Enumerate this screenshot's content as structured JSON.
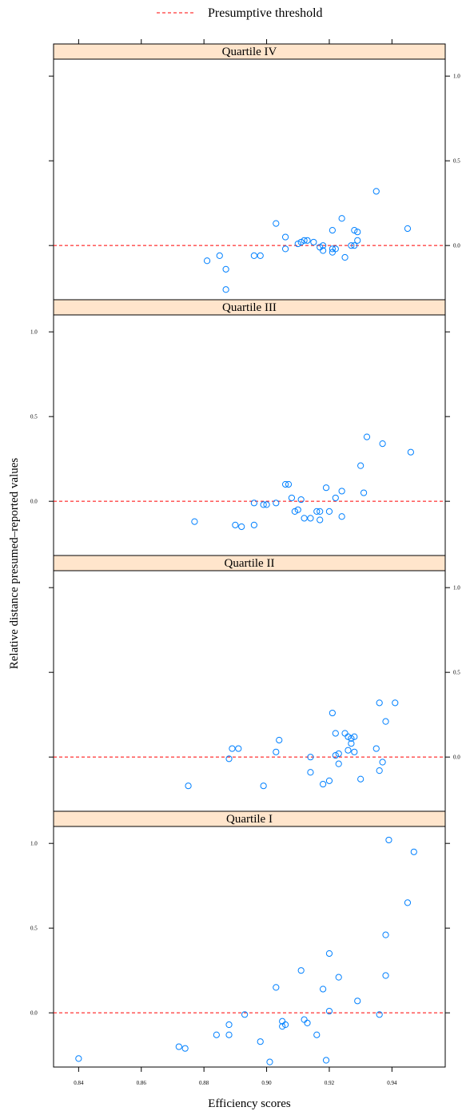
{
  "chart_data": {
    "type": "scatter",
    "layout": "lattice-stacked-panels",
    "xlabel": "Efficiency scores",
    "ylabel": "Relative distance presumed–reported values",
    "xlim": [
      0.832,
      0.957
    ],
    "ylim": [
      -0.32,
      1.1
    ],
    "x_ticks": [
      0.84,
      0.86,
      0.88,
      0.9,
      0.92,
      0.94
    ],
    "x_tick_labels": [
      "0.84",
      "0.86",
      "0.88",
      "0.90",
      "0.92",
      "0.94"
    ],
    "y_ticks": [
      0.0,
      0.5,
      1.0
    ],
    "y_tick_labels": [
      "0.0",
      "0.5",
      "1.0"
    ],
    "grid": false,
    "legend": {
      "position": "top",
      "entries": [
        {
          "label": "Presumptive threshold",
          "style": "dashed",
          "color": "#ff0000"
        }
      ]
    },
    "threshold_y": 0.0,
    "point_color": "#0080ff",
    "strip_color": "#ffe5cc",
    "panels": [
      {
        "label": "Quartile IV",
        "points": [
          {
            "x": 0.881,
            "y": -0.09
          },
          {
            "x": 0.885,
            "y": -0.06
          },
          {
            "x": 0.887,
            "y": -0.14
          },
          {
            "x": 0.887,
            "y": -0.26
          },
          {
            "x": 0.896,
            "y": -0.06
          },
          {
            "x": 0.898,
            "y": -0.06
          },
          {
            "x": 0.903,
            "y": 0.13
          },
          {
            "x": 0.906,
            "y": 0.05
          },
          {
            "x": 0.906,
            "y": -0.02
          },
          {
            "x": 0.91,
            "y": 0.01
          },
          {
            "x": 0.911,
            "y": 0.02
          },
          {
            "x": 0.912,
            "y": 0.03
          },
          {
            "x": 0.913,
            "y": 0.03
          },
          {
            "x": 0.915,
            "y": 0.02
          },
          {
            "x": 0.917,
            "y": -0.01
          },
          {
            "x": 0.918,
            "y": 0.0
          },
          {
            "x": 0.918,
            "y": -0.03
          },
          {
            "x": 0.921,
            "y": -0.02
          },
          {
            "x": 0.921,
            "y": -0.04
          },
          {
            "x": 0.921,
            "y": 0.09
          },
          {
            "x": 0.922,
            "y": -0.02
          },
          {
            "x": 0.924,
            "y": 0.16
          },
          {
            "x": 0.925,
            "y": -0.07
          },
          {
            "x": 0.927,
            "y": 0.0
          },
          {
            "x": 0.928,
            "y": 0.0
          },
          {
            "x": 0.928,
            "y": 0.09
          },
          {
            "x": 0.929,
            "y": 0.08
          },
          {
            "x": 0.929,
            "y": 0.03
          },
          {
            "x": 0.935,
            "y": 0.32
          },
          {
            "x": 0.945,
            "y": 0.1
          }
        ]
      },
      {
        "label": "Quartile III",
        "points": [
          {
            "x": 0.877,
            "y": -0.12
          },
          {
            "x": 0.89,
            "y": -0.14
          },
          {
            "x": 0.892,
            "y": -0.15
          },
          {
            "x": 0.896,
            "y": -0.01
          },
          {
            "x": 0.896,
            "y": -0.14
          },
          {
            "x": 0.899,
            "y": -0.02
          },
          {
            "x": 0.9,
            "y": -0.02
          },
          {
            "x": 0.903,
            "y": -0.01
          },
          {
            "x": 0.906,
            "y": 0.1
          },
          {
            "x": 0.907,
            "y": 0.1
          },
          {
            "x": 0.908,
            "y": 0.02
          },
          {
            "x": 0.909,
            "y": -0.06
          },
          {
            "x": 0.91,
            "y": -0.05
          },
          {
            "x": 0.911,
            "y": 0.01
          },
          {
            "x": 0.912,
            "y": -0.1
          },
          {
            "x": 0.914,
            "y": -0.1
          },
          {
            "x": 0.916,
            "y": -0.06
          },
          {
            "x": 0.917,
            "y": -0.06
          },
          {
            "x": 0.917,
            "y": -0.11
          },
          {
            "x": 0.919,
            "y": 0.08
          },
          {
            "x": 0.92,
            "y": -0.06
          },
          {
            "x": 0.922,
            "y": 0.02
          },
          {
            "x": 0.924,
            "y": 0.06
          },
          {
            "x": 0.924,
            "y": -0.09
          },
          {
            "x": 0.93,
            "y": 0.21
          },
          {
            "x": 0.931,
            "y": 0.05
          },
          {
            "x": 0.932,
            "y": 0.38
          },
          {
            "x": 0.937,
            "y": 0.34
          },
          {
            "x": 0.946,
            "y": 0.29
          }
        ]
      },
      {
        "label": "Quartile II",
        "points": [
          {
            "x": 0.875,
            "y": -0.17
          },
          {
            "x": 0.888,
            "y": -0.01
          },
          {
            "x": 0.889,
            "y": 0.05
          },
          {
            "x": 0.891,
            "y": 0.05
          },
          {
            "x": 0.899,
            "y": -0.17
          },
          {
            "x": 0.903,
            "y": 0.03
          },
          {
            "x": 0.904,
            "y": 0.1
          },
          {
            "x": 0.914,
            "y": 0.0
          },
          {
            "x": 0.914,
            "y": -0.09
          },
          {
            "x": 0.918,
            "y": -0.16
          },
          {
            "x": 0.92,
            "y": -0.14
          },
          {
            "x": 0.921,
            "y": 0.26
          },
          {
            "x": 0.922,
            "y": 0.14
          },
          {
            "x": 0.922,
            "y": 0.01
          },
          {
            "x": 0.923,
            "y": 0.02
          },
          {
            "x": 0.923,
            "y": -0.04
          },
          {
            "x": 0.925,
            "y": 0.14
          },
          {
            "x": 0.926,
            "y": 0.12
          },
          {
            "x": 0.926,
            "y": 0.04
          },
          {
            "x": 0.927,
            "y": 0.08
          },
          {
            "x": 0.927,
            "y": 0.11
          },
          {
            "x": 0.928,
            "y": 0.12
          },
          {
            "x": 0.928,
            "y": 0.03
          },
          {
            "x": 0.93,
            "y": -0.13
          },
          {
            "x": 0.935,
            "y": 0.05
          },
          {
            "x": 0.936,
            "y": 0.32
          },
          {
            "x": 0.936,
            "y": -0.08
          },
          {
            "x": 0.937,
            "y": -0.03
          },
          {
            "x": 0.938,
            "y": 0.21
          },
          {
            "x": 0.941,
            "y": 0.32
          }
        ]
      },
      {
        "label": "Quartile I",
        "points": [
          {
            "x": 0.84,
            "y": -0.27
          },
          {
            "x": 0.872,
            "y": -0.2
          },
          {
            "x": 0.874,
            "y": -0.21
          },
          {
            "x": 0.884,
            "y": -0.13
          },
          {
            "x": 0.888,
            "y": -0.13
          },
          {
            "x": 0.888,
            "y": -0.07
          },
          {
            "x": 0.893,
            "y": -0.01
          },
          {
            "x": 0.898,
            "y": -0.17
          },
          {
            "x": 0.901,
            "y": -0.29
          },
          {
            "x": 0.903,
            "y": 0.15
          },
          {
            "x": 0.905,
            "y": -0.05
          },
          {
            "x": 0.905,
            "y": -0.08
          },
          {
            "x": 0.906,
            "y": -0.07
          },
          {
            "x": 0.911,
            "y": 0.25
          },
          {
            "x": 0.912,
            "y": -0.04
          },
          {
            "x": 0.913,
            "y": -0.06
          },
          {
            "x": 0.916,
            "y": -0.13
          },
          {
            "x": 0.918,
            "y": 0.14
          },
          {
            "x": 0.919,
            "y": -0.28
          },
          {
            "x": 0.92,
            "y": 0.35
          },
          {
            "x": 0.92,
            "y": 0.01
          },
          {
            "x": 0.923,
            "y": 0.21
          },
          {
            "x": 0.929,
            "y": 0.07
          },
          {
            "x": 0.936,
            "y": -0.01
          },
          {
            "x": 0.938,
            "y": 0.46
          },
          {
            "x": 0.938,
            "y": 0.22
          },
          {
            "x": 0.939,
            "y": 1.02
          },
          {
            "x": 0.945,
            "y": 0.65
          },
          {
            "x": 0.947,
            "y": 0.95
          }
        ]
      }
    ]
  }
}
